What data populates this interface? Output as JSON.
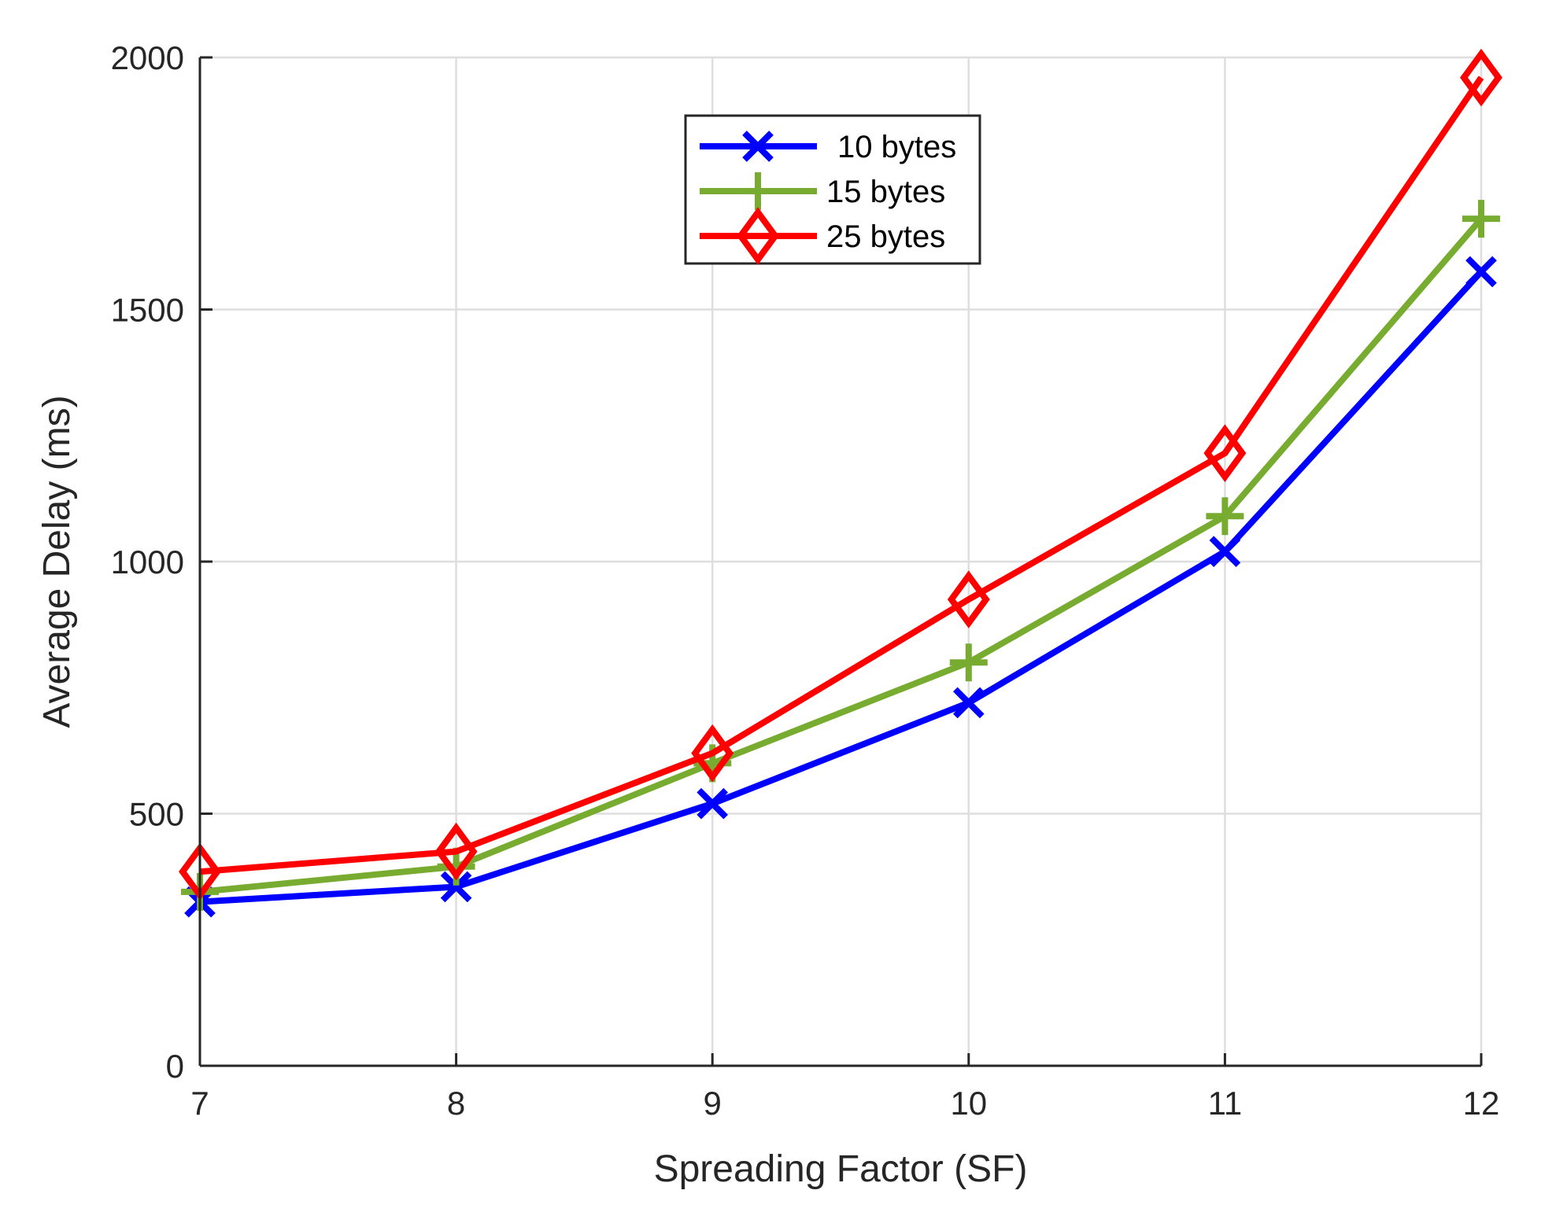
{
  "chart_data": {
    "type": "line",
    "title": "",
    "xlabel": "Spreading Factor (SF)",
    "ylabel": "Average Delay (ms)",
    "x": [
      7,
      8,
      9,
      10,
      11,
      12
    ],
    "xlim": [
      7,
      12
    ],
    "ylim": [
      0,
      2000
    ],
    "xticks": [
      "7",
      "8",
      "9",
      "10",
      "11",
      "12"
    ],
    "yticks": [
      "0",
      "500",
      "1000",
      "1500",
      "2000"
    ],
    "ytick_values": [
      0,
      500,
      1000,
      1500,
      2000
    ],
    "grid": true,
    "legend_position": "top-center",
    "series": [
      {
        "name": "10 bytes",
        "color": "#0000FF",
        "marker": "x",
        "values": [
          325,
          355,
          520,
          720,
          1020,
          1575
        ]
      },
      {
        "name": "15 bytes",
        "color": "#77AC30",
        "marker": "+",
        "values": [
          345,
          395,
          600,
          800,
          1090,
          1680
        ]
      },
      {
        "name": "25 bytes",
        "color": "#FF0000",
        "marker": "diamond",
        "values": [
          385,
          425,
          620,
          925,
          1215,
          1960
        ]
      }
    ]
  }
}
